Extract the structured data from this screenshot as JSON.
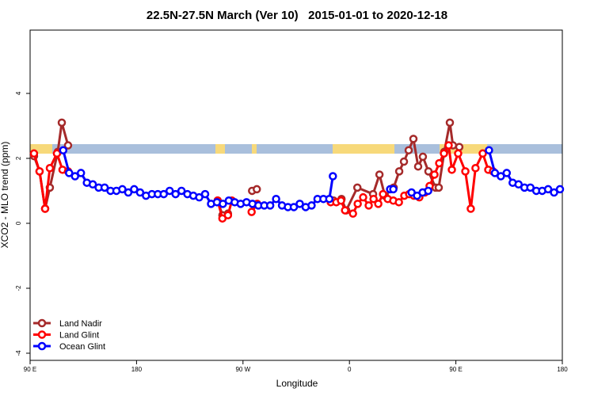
{
  "chart_data": {
    "type": "line",
    "title": "22.5N-27.5N March (Ver 10)   2015-01-01 to 2020-12-18",
    "xlabel": "Longitude",
    "ylabel": "XCO2 - MLO trend (ppm)",
    "xlim": [
      -270,
      180
    ],
    "xticks": [
      {
        "value": -270,
        "label": "90 E"
      },
      {
        "value": -180,
        "label": "180"
      },
      {
        "value": -90,
        "label": "90 W"
      },
      0,
      {
        "value": 90,
        "label": "90 E"
      },
      180
    ],
    "ylim": [
      -4.22,
      5.95
    ],
    "yticks": [
      -4,
      -2,
      0,
      2,
      4
    ],
    "legend": "bottom-left",
    "series": [
      {
        "name": "Land Nadir",
        "color": "#a52a2a",
        "x": [
          -266.7,
          -262.0,
          -257.3,
          -253.3,
          -246.6,
          -243.2,
          -237.9,
          null,
          -111.4,
          -107.4,
          -102.7,
          null,
          -82.3,
          -78.3,
          null,
          -13.4,
          -6.7,
          -2.7,
          6.7,
          20.0,
          25.4,
          30.0,
          37.4,
          42.1,
          46.1,
          50.1,
          54.1,
          58.1,
          62.1,
          66.8,
          72.8,
          75.5,
          80.2,
          84.9,
          87.5,
          92.9
        ],
        "values": [
          2.07,
          1.6,
          0.45,
          1.1,
          2.2,
          3.1,
          2.4,
          null,
          0.7,
          0.25,
          0.3,
          null,
          1.0,
          1.05,
          null,
          0.7,
          0.75,
          0.4,
          1.1,
          0.9,
          1.5,
          0.85,
          1.1,
          1.6,
          1.9,
          2.25,
          2.6,
          1.75,
          2.05,
          1.6,
          1.1,
          1.1,
          2.2,
          3.1,
          2.4,
          2.35
        ]
      },
      {
        "name": "Land Glint",
        "color": "#ff0000",
        "x": [
          -266.7,
          -262.0,
          -257.3,
          -253.3,
          -247.3,
          -242.6,
          -237.9,
          null,
          -111.4,
          -107.4,
          -102.7,
          -99.4,
          null,
          -82.7,
          -78.0,
          null,
          -15.8,
          -11.1,
          -7.1,
          -3.7,
          3.0,
          7.0,
          11.6,
          16.3,
          20.4,
          24.4,
          28.4,
          32.4,
          37.1,
          41.8,
          46.4,
          50.5,
          54.5,
          59.1,
          63.8,
          67.8,
          71.9,
          75.9,
          79.9,
          83.9,
          86.6,
          91.9,
          98.0,
          102.6,
          106.6,
          112.7,
          117.4,
          121.4
        ],
        "values": [
          2.15,
          1.6,
          0.45,
          1.7,
          2.15,
          1.65,
          1.6,
          null,
          0.7,
          0.15,
          0.25,
          0.7,
          null,
          0.35,
          0.6,
          null,
          0.65,
          0.65,
          0.7,
          0.4,
          0.3,
          0.6,
          0.8,
          0.55,
          0.75,
          0.6,
          0.9,
          0.75,
          0.7,
          0.65,
          0.85,
          0.9,
          0.85,
          0.8,
          0.95,
          1.15,
          1.5,
          1.85,
          2.15,
          2.4,
          1.65,
          2.15,
          1.6,
          0.45,
          1.7,
          2.15,
          1.65,
          1.6
        ]
      },
      {
        "name": "Ocean Glint",
        "color": "#0000ff",
        "x": [
          -242,
          -237,
          -232,
          -227,
          -222,
          -217,
          -212,
          -207,
          -202,
          -197,
          -192,
          -187,
          -182,
          -177,
          -172,
          -167,
          -162,
          -157,
          -152,
          -147,
          -142,
          -137,
          -132,
          -127,
          -122,
          -117,
          -112,
          -107,
          -102,
          -97,
          -92,
          -87,
          -82,
          -77,
          -72,
          -67,
          -62,
          -57,
          -52,
          -47,
          -42,
          -37,
          -32,
          -27,
          -22,
          -17,
          -14,
          null,
          34.4,
          37.1,
          null,
          52.5,
          57.2,
          61.9,
          66.6,
          null,
          118,
          123,
          128,
          133,
          138,
          143,
          148,
          153,
          158,
          163,
          168,
          173,
          178
        ],
        "values": [
          2.25,
          1.55,
          1.45,
          1.55,
          1.25,
          1.2,
          1.1,
          1.1,
          1.0,
          1.0,
          1.05,
          0.95,
          1.05,
          0.95,
          0.85,
          0.9,
          0.9,
          0.9,
          1.0,
          0.9,
          1.0,
          0.9,
          0.85,
          0.8,
          0.9,
          0.6,
          0.65,
          0.6,
          0.7,
          0.65,
          0.6,
          0.65,
          0.6,
          0.55,
          0.55,
          0.55,
          0.75,
          0.55,
          0.5,
          0.5,
          0.6,
          0.5,
          0.55,
          0.75,
          0.75,
          0.75,
          1.45,
          null,
          1.05,
          1.05,
          null,
          0.95,
          0.85,
          0.95,
          1.0,
          null,
          2.25,
          1.55,
          1.45,
          1.55,
          1.25,
          1.2,
          1.1,
          1.1,
          1.0,
          1.0,
          1.05,
          0.95,
          1.05
        ]
      }
    ]
  }
}
